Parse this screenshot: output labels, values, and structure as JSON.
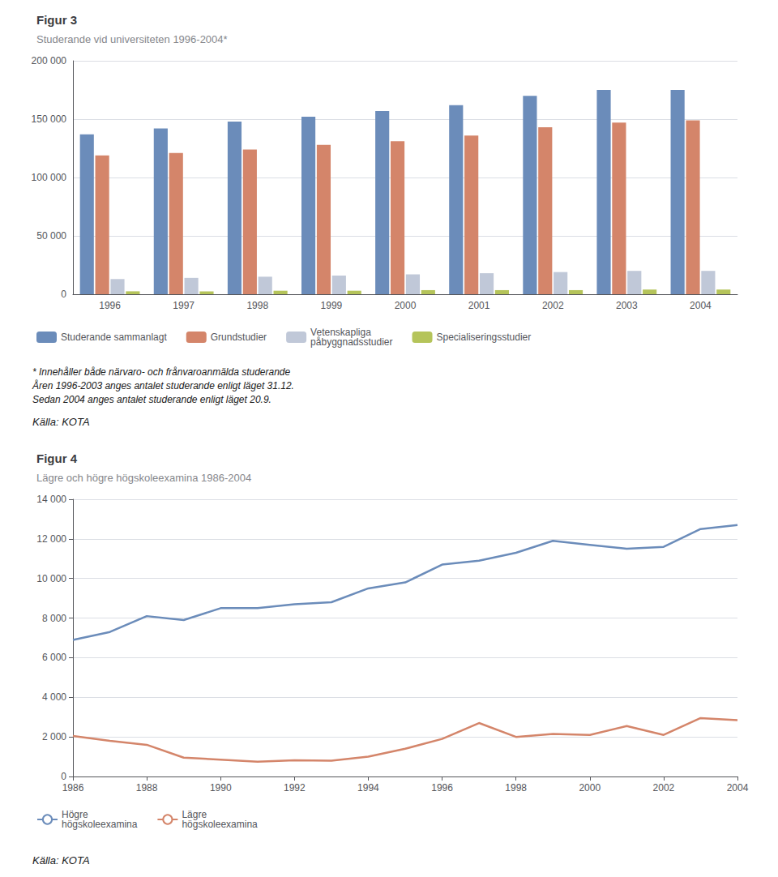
{
  "chart_data": [
    {
      "type": "bar",
      "title": "Figur 3",
      "subtitle": "Studerande vid universiteten 1996-2004*",
      "categories": [
        "1996",
        "1997",
        "1998",
        "1999",
        "2000",
        "2001",
        "2002",
        "2003",
        "2004"
      ],
      "series": [
        {
          "name": "Studerande sammanlagt",
          "color": "#6b8cba",
          "values": [
            137000,
            142000,
            148000,
            152000,
            157000,
            162000,
            170000,
            175000,
            175000
          ]
        },
        {
          "name": "Grundstudier",
          "color": "#d4856a",
          "values": [
            119000,
            121000,
            124000,
            128000,
            131000,
            136000,
            143000,
            147000,
            149000
          ]
        },
        {
          "name": "Vetenskapliga\npåbyggnadsstudier",
          "color": "#c0c8d8",
          "values": [
            13000,
            14000,
            15000,
            16000,
            17000,
            18000,
            19000,
            20000,
            20000
          ]
        },
        {
          "name": "Specialiseringsstudier",
          "color": "#b5c45a",
          "values": [
            2500,
            2500,
            3000,
            3000,
            3500,
            3500,
            3500,
            4000,
            4000
          ]
        }
      ],
      "ylim": [
        0,
        200000
      ],
      "yticks": [
        0,
        {
          "value": 50000,
          "label": "50 000"
        },
        {
          "value": 100000,
          "label": "100 000"
        },
        {
          "value": 150000,
          "label": "150 000"
        },
        {
          "value": 200000,
          "label": "200 000"
        }
      ],
      "grid": true,
      "legend": "bottom",
      "annotations": [
        "* Innehåller både närvaro- och frånvaroanmälda studerande",
        "Åren 1996-2003 anges antalet studerande enligt läget 31.12.",
        "Sedan 2004 anges antalet studerande enligt läget 20.9.",
        "Källa: KOTA"
      ]
    },
    {
      "type": "line",
      "title": "Figur 4",
      "subtitle": "Lägre och högre högskoleexamina 1986-2004",
      "x": [
        1986,
        1987,
        1988,
        1989,
        1990,
        1991,
        1992,
        1993,
        1994,
        1995,
        1996,
        1997,
        1998,
        1999,
        2000,
        2001,
        2002,
        2003,
        2004
      ],
      "series": [
        {
          "name": "Högre\nhögskoleexamina",
          "color": "#6b8cba",
          "values": [
            6900,
            7300,
            8100,
            7900,
            8500,
            8500,
            8700,
            8800,
            9500,
            9800,
            10700,
            10900,
            11300,
            11900,
            11700,
            11500,
            11600,
            12500,
            12700
          ]
        },
        {
          "name": "Lägre\nhögskoleexamina",
          "color": "#d4856a",
          "values": [
            2050,
            1800,
            1600,
            950,
            850,
            750,
            820,
            800,
            1000,
            1400,
            1900,
            2700,
            2000,
            2150,
            2100,
            2550,
            2100,
            2950,
            2850
          ]
        }
      ],
      "xlim": [
        1986,
        2004
      ],
      "xticks": [
        1986,
        1988,
        1990,
        1992,
        1994,
        1996,
        1998,
        2000,
        2002,
        2004
      ],
      "ylim": [
        0,
        14000
      ],
      "yticks": [
        0,
        {
          "value": 2000,
          "label": "2 000"
        },
        {
          "value": 4000,
          "label": "4 000"
        },
        {
          "value": 6000,
          "label": "6 000"
        },
        {
          "value": 8000,
          "label": "8 000"
        },
        {
          "value": 10000,
          "label": "10 000"
        },
        {
          "value": 12000,
          "label": "12 000"
        },
        {
          "value": 14000,
          "label": "14 000"
        }
      ],
      "grid": true,
      "legend": "bottom",
      "annotations": [
        "Källa: KOTA"
      ]
    }
  ]
}
